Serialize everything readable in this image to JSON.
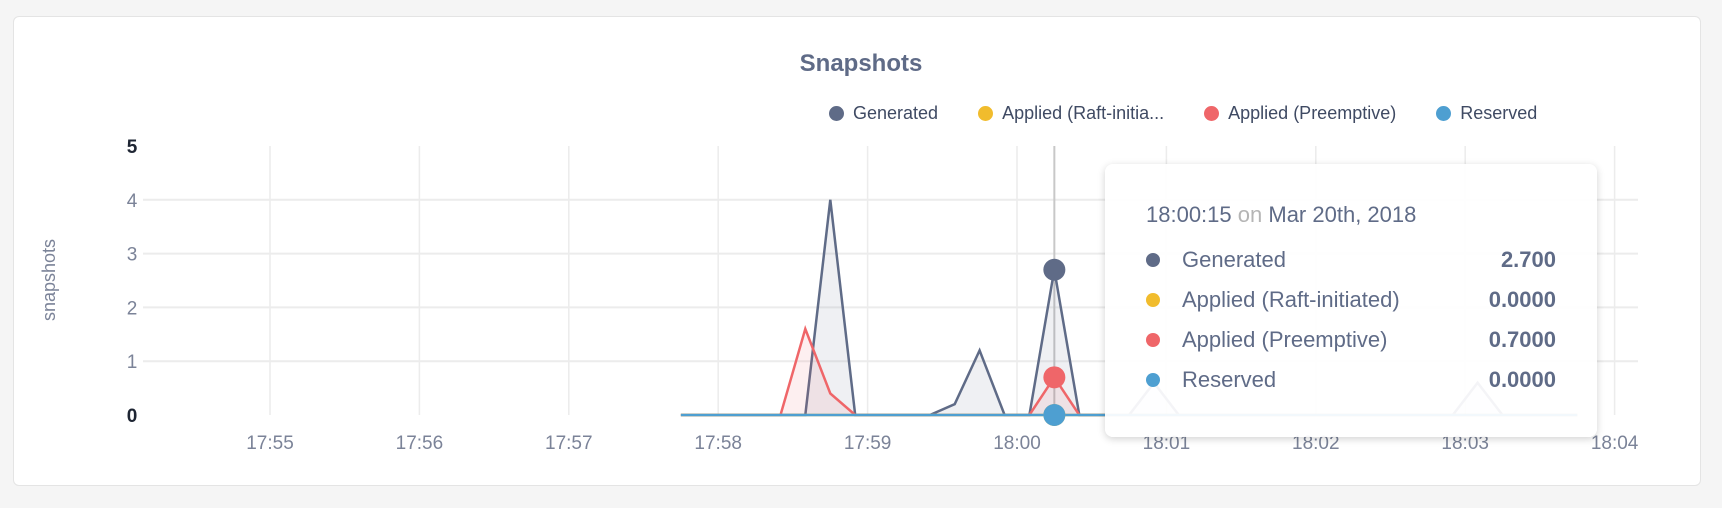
{
  "chart_data": {
    "type": "area",
    "title": "Snapshots",
    "ylabel": "snapshots",
    "xlabel": "",
    "ylim": [
      0,
      5
    ],
    "yticks": [
      "0",
      "1",
      "2",
      "3",
      "4",
      "5"
    ],
    "xticks": [
      "17:55",
      "17:56",
      "17:57",
      "17:58",
      "17:59",
      "18:00",
      "18:01",
      "18:02",
      "18:03",
      "18:04"
    ],
    "grid": true,
    "legend_position": "top-right",
    "x": [
      "17:57:45",
      "17:57:55",
      "17:58:05",
      "17:58:15",
      "17:58:25",
      "17:58:35",
      "17:58:45",
      "17:58:55",
      "17:59:05",
      "17:59:15",
      "17:59:25",
      "17:59:35",
      "17:59:45",
      "17:59:55",
      "18:00:05",
      "18:00:15",
      "18:00:25",
      "18:00:35",
      "18:00:45",
      "18:00:55",
      "18:01:05",
      "18:01:15",
      "18:01:25",
      "18:01:35",
      "18:01:45",
      "18:01:55",
      "18:02:05",
      "18:02:15",
      "18:02:25",
      "18:02:35",
      "18:02:45",
      "18:02:55",
      "18:03:05",
      "18:03:15",
      "18:03:25",
      "18:03:35",
      "18:03:45"
    ],
    "series": [
      {
        "name": "Generated",
        "color": "#5f6b87",
        "values": [
          0,
          0,
          0,
          0,
          0,
          0,
          4,
          0,
          0,
          0,
          0,
          0.2,
          1.2,
          0,
          0,
          2.7,
          0,
          0,
          0,
          0.6,
          0,
          0,
          0,
          0,
          0,
          0,
          0,
          0,
          0,
          0,
          0,
          0,
          0.6,
          0,
          0,
          0,
          0
        ]
      },
      {
        "name": "Applied (Raft-initiated)",
        "legend_label": "Applied (Raft-initia...",
        "color": "#f1bc2d",
        "values": [
          0,
          0,
          0,
          0,
          0,
          0,
          0,
          0,
          0,
          0,
          0,
          0,
          0,
          0,
          0,
          0,
          0,
          0,
          0,
          0,
          0,
          0,
          0,
          0,
          0,
          0,
          0,
          0,
          0,
          0,
          0,
          0,
          0,
          0,
          0,
          0,
          0
        ]
      },
      {
        "name": "Applied (Preemptive)",
        "color": "#ef6669",
        "values": [
          0,
          0,
          0,
          0,
          0,
          1.6,
          0.4,
          0,
          0,
          0,
          0,
          0,
          0,
          0,
          0,
          0.7,
          0,
          0,
          0,
          0,
          0,
          0,
          0,
          0,
          0,
          0,
          0,
          0,
          0,
          0,
          0,
          0,
          0,
          0,
          0,
          0,
          0
        ]
      },
      {
        "name": "Reserved",
        "color": "#4e9fd1",
        "values": [
          0,
          0,
          0,
          0,
          0,
          0,
          0,
          0,
          0,
          0,
          0,
          0,
          0,
          0,
          0,
          0,
          0,
          0,
          0,
          0,
          0,
          0,
          0,
          0,
          0,
          0,
          0,
          0,
          0,
          0,
          0,
          0,
          0,
          0,
          0,
          0,
          0
        ]
      }
    ],
    "hover_index": 15
  },
  "tooltip": {
    "time": "18:00:15",
    "on": "on",
    "date": "Mar 20th, 2018",
    "rows": [
      {
        "label": "Generated",
        "value": "2.700",
        "color": "#5f6b87"
      },
      {
        "label": "Applied (Raft-initiated)",
        "value": "0.0000",
        "color": "#f1bc2d"
      },
      {
        "label": "Applied (Preemptive)",
        "value": "0.7000",
        "color": "#ef6669"
      },
      {
        "label": "Reserved",
        "value": "0.0000",
        "color": "#4e9fd1"
      }
    ]
  }
}
